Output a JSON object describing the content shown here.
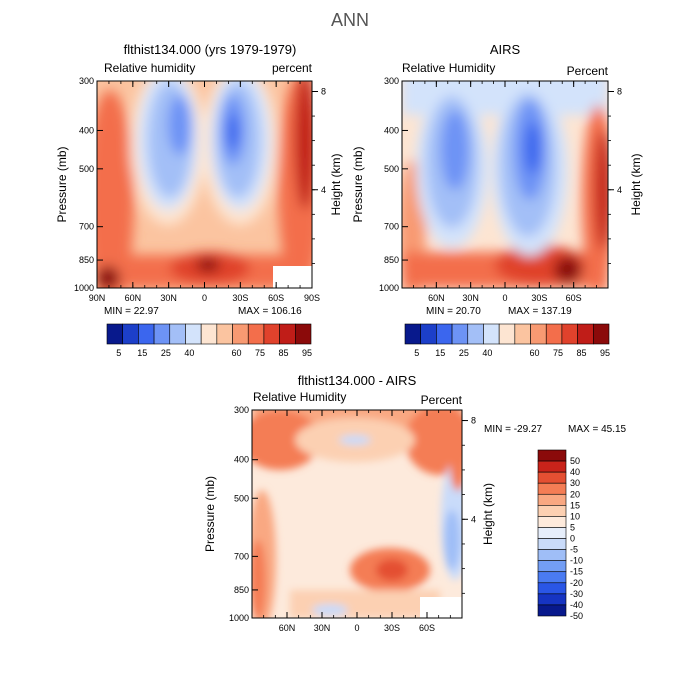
{
  "page_title": "ANN",
  "colors": {
    "rh_scale": [
      "#08198c",
      "#1c3fc9",
      "#3b66ee",
      "#6d93f5",
      "#a3bff7",
      "#d3e3fb",
      "#fde5d2",
      "#fbc4a0",
      "#f89a72",
      "#f36e4b",
      "#e0422c",
      "#c01d18",
      "#8b0a0a"
    ],
    "diff_scale": [
      "#08198c",
      "#1634c2",
      "#2a56e6",
      "#4a7bf2",
      "#739ef5",
      "#9fbef7",
      "#c9dbfa",
      "#e6eefb",
      "#fdeadc",
      "#fcd0b2",
      "#f9a882",
      "#f47d55",
      "#e44f32",
      "#c9231a",
      "#8b0a0a"
    ]
  },
  "chart_data": [
    {
      "type": "heatmap",
      "title": "flthist134.000 (yrs 1979-1979)",
      "left_label": "Relative humidity",
      "right_label": "percent",
      "xlabel": "",
      "ylabel": "Pressure (mb)",
      "y2label": "Height (km)",
      "x_ticks": [
        "90N",
        "60N",
        "30N",
        "0",
        "30S",
        "60S",
        "90S"
      ],
      "y_ticks": [
        "300",
        "400",
        "500",
        "700",
        "850",
        "1000"
      ],
      "y2_ticks": [
        "8",
        "4"
      ],
      "min_text": "MIN = 22.97",
      "max_text": "MAX = 106.16",
      "min": 22.97,
      "max": 106.16,
      "colorbar_labels": [
        "5",
        "15",
        "25",
        "40",
        "60",
        "75",
        "85",
        "95"
      ]
    },
    {
      "type": "heatmap",
      "title": "AIRS",
      "left_label": "Relative Humidity",
      "right_label": "Percent",
      "xlabel": "",
      "ylabel": "Pressure (mb)",
      "y2label": "Height (km)",
      "x_ticks": [
        "60N",
        "30N",
        "0",
        "30S",
        "60S"
      ],
      "y_ticks": [
        "300",
        "400",
        "500",
        "700",
        "850",
        "1000"
      ],
      "y2_ticks": [
        "8",
        "4"
      ],
      "min_text": "MIN = 20.70",
      "max_text": "MAX = 137.19",
      "min": 20.7,
      "max": 137.19,
      "colorbar_labels": [
        "5",
        "15",
        "25",
        "40",
        "60",
        "75",
        "85",
        "95"
      ]
    },
    {
      "type": "heatmap",
      "title": "flthist134.000 - AIRS",
      "left_label": "Relative Humidity",
      "right_label": "Percent",
      "xlabel": "",
      "ylabel": "Pressure (mb)",
      "y2label": "Height (km)",
      "x_ticks": [
        "60N",
        "30N",
        "0",
        "30S",
        "60S"
      ],
      "y_ticks": [
        "300",
        "400",
        "500",
        "700",
        "850",
        "1000"
      ],
      "y2_ticks": [
        "8",
        "4"
      ],
      "min_text": "MIN = -29.27",
      "max_text": "MAX = 45.15",
      "min": -29.27,
      "max": 45.15,
      "colorbar_labels": [
        "50",
        "40",
        "30",
        "20",
        "15",
        "10",
        "5",
        "0",
        "-5",
        "-10",
        "-15",
        "-20",
        "-30",
        "-40",
        "-50"
      ]
    }
  ]
}
